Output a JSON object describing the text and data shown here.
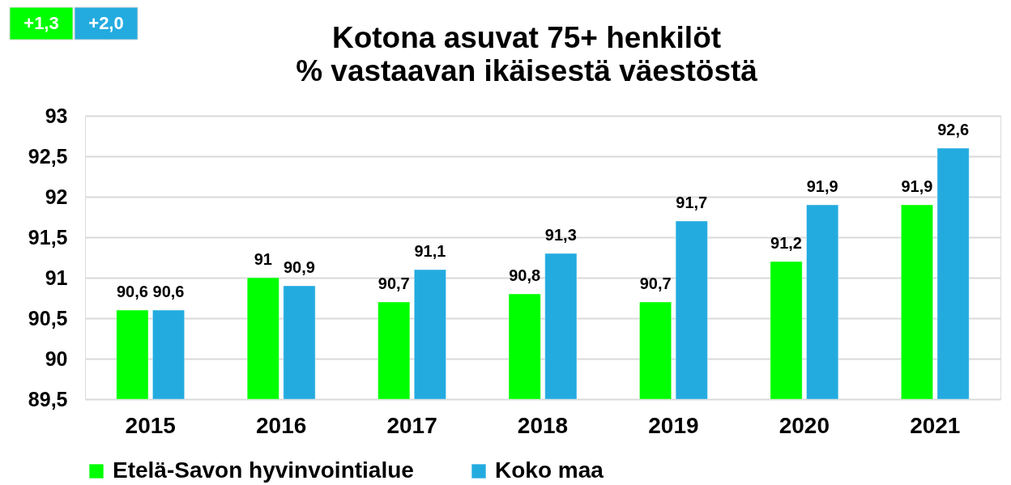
{
  "chart_data": {
    "type": "bar",
    "title": "Kotona asuvat 75+ henkilöt",
    "subtitle": "% vastaavan ikäisestä väestöstä",
    "categories": [
      "2015",
      "2016",
      "2017",
      "2018",
      "2019",
      "2020",
      "2021"
    ],
    "series": [
      {
        "name": "Etelä-Savon hyvinvointialue",
        "color": "#00ff00",
        "values": [
          90.6,
          91,
          90.7,
          90.8,
          90.7,
          91.2,
          91.9
        ],
        "value_labels": [
          "90,6",
          "91",
          "90,7",
          "90,8",
          "90,7",
          "91,2",
          "91,9"
        ]
      },
      {
        "name": "Koko maa",
        "color": "#23abe0",
        "values": [
          90.6,
          90.9,
          91.1,
          91.3,
          91.7,
          91.9,
          92.6
        ],
        "value_labels": [
          "90,6",
          "90,9",
          "91,1",
          "91,3",
          "91,7",
          "91,9",
          "92,6"
        ]
      }
    ],
    "ylim": [
      89.5,
      93
    ],
    "yticks": [
      {
        "value": 89.5,
        "label": "89,5"
      },
      90,
      {
        "value": 90.5,
        "label": "90,5"
      },
      91,
      {
        "value": 91.5,
        "label": "91,5"
      },
      92,
      {
        "value": 92.5,
        "label": "92,5"
      },
      93
    ],
    "grid": "y",
    "legend": "bottom",
    "annotations": [
      "+1,3",
      "+2,0"
    ]
  }
}
